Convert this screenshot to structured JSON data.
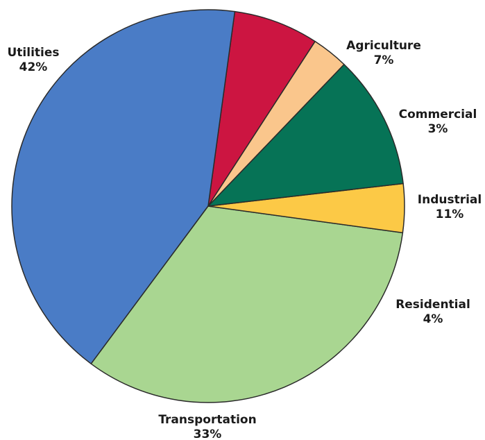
{
  "chart_data": {
    "type": "pie",
    "start_angle_deg": 57,
    "direction": "counterclockwise",
    "slices": [
      {
        "label": "Agriculture",
        "value_label": "7%",
        "value": 7,
        "color": "#cc1541"
      },
      {
        "label": "Utilities",
        "value_label": "42%",
        "value": 42,
        "color": "#4a7cc6"
      },
      {
        "label": "Transportation",
        "value_label": "33%",
        "value": 33,
        "color": "#a9d691"
      },
      {
        "label": "Residential",
        "value_label": "4%",
        "value": 4,
        "color": "#fcc946"
      },
      {
        "label": "Industrial",
        "value_label": "11%",
        "value": 11,
        "color": "#067356"
      },
      {
        "label": "Commercial",
        "value_label": "3%",
        "value": 3,
        "color": "#fac68c"
      }
    ],
    "border_color": "#2a2a2a"
  }
}
